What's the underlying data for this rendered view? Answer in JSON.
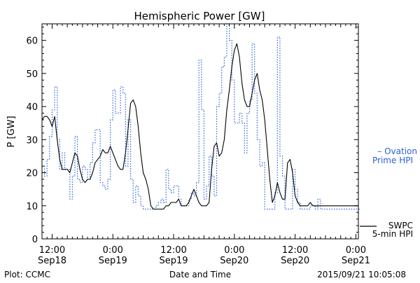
{
  "chart_data": {
    "type": "line",
    "title": "Hemispheric Power [GW]",
    "ylabel": "P [GW]",
    "xlabel": "Date and Time",
    "xlim_hours": [
      -2.0,
      60.5
    ],
    "ylim": [
      0,
      65
    ],
    "y_ticks": [
      0,
      10,
      20,
      30,
      40,
      50,
      60
    ],
    "x_ticks": [
      {
        "hour": 0,
        "time": "12:00",
        "date": "Sep18"
      },
      {
        "hour": 12,
        "time": "0:00",
        "date": "Sep19"
      },
      {
        "hour": 24,
        "time": "12:00",
        "date": "Sep19"
      },
      {
        "hour": 36,
        "time": "0:00",
        "date": "Sep20"
      },
      {
        "hour": 48,
        "time": "12:00",
        "date": "Sep20"
      },
      {
        "hour": 60,
        "time": "0:00",
        "date": "Sep21"
      }
    ],
    "x_unit": "hours since 2015-09-18 12:00 UT",
    "series": [
      {
        "name": "Ovation Prime HPI",
        "legend": [
          "– Ovation",
          "Prime HPI"
        ],
        "color": "#2c62d8",
        "style": "dotted-step",
        "x": [
          -2.0,
          -1.5,
          -1.0,
          -0.5,
          0.0,
          0.5,
          1.0,
          1.5,
          2.0,
          2.5,
          3.0,
          3.5,
          4.0,
          4.5,
          5.0,
          5.5,
          6.0,
          6.5,
          7.0,
          7.5,
          8.0,
          8.5,
          9.0,
          9.5,
          10.0,
          10.5,
          11.0,
          11.5,
          12.0,
          12.5,
          13.0,
          13.5,
          14.0,
          14.5,
          15.0,
          15.5,
          16.0,
          16.5,
          17.0,
          17.5,
          18.0,
          18.5,
          19.0,
          19.5,
          20.0,
          20.5,
          21.0,
          21.5,
          22.0,
          22.5,
          23.0,
          23.5,
          24.0,
          24.5,
          25.0,
          25.5,
          26.0,
          26.5,
          27.0,
          27.5,
          28.0,
          28.5,
          29.0,
          29.5,
          30.0,
          30.5,
          31.0,
          31.5,
          32.0,
          32.5,
          33.0,
          33.5,
          34.0,
          34.5,
          35.0,
          35.5,
          36.0,
          36.5,
          37.0,
          37.5,
          38.0,
          38.5,
          39.0,
          39.5,
          40.0,
          40.5,
          41.0,
          41.5,
          42.0,
          42.5,
          43.0,
          43.5,
          44.0,
          44.5,
          45.0,
          45.5,
          46.0,
          46.5,
          47.0,
          47.5,
          48.0,
          48.5,
          49.0,
          49.5,
          50.0,
          50.5,
          51.0,
          51.5,
          52.0,
          52.5,
          53.0,
          53.5,
          54.0,
          54.5,
          55.0,
          55.5,
          56.0,
          56.5,
          57.0,
          57.5,
          58.0,
          58.5,
          59.0,
          59.5,
          60.0,
          60.5
        ],
        "values": [
          22,
          19,
          24,
          31,
          39,
          46,
          30,
          21,
          26,
          21,
          21,
          12,
          19,
          31,
          18,
          17,
          22,
          21,
          18,
          23,
          29,
          33,
          33,
          17,
          16,
          15,
          18,
          36,
          45,
          38,
          38,
          46,
          44,
          22,
          36,
          18,
          11,
          16,
          13,
          10,
          9,
          9,
          9,
          9,
          9,
          10,
          11,
          12,
          11,
          21,
          15,
          14,
          16,
          16,
          12,
          10,
          10,
          10,
          12,
          14,
          13,
          17,
          54,
          39,
          12,
          16,
          25,
          19,
          13,
          40,
          44,
          52,
          55,
          65,
          60,
          48,
          35,
          35,
          38,
          35,
          26,
          38,
          42,
          59,
          44,
          30,
          22,
          23,
          9,
          9,
          9,
          9,
          14,
          61,
          25,
          19,
          9,
          9,
          9,
          21,
          15,
          11,
          9,
          9,
          9,
          9,
          10,
          10,
          9,
          12,
          9,
          9,
          9,
          9,
          9,
          9,
          9,
          9,
          9,
          9,
          9,
          9,
          9,
          9,
          9,
          9
        ]
      },
      {
        "name": "SWPC 5-min HPI",
        "legend": [
          "SWPC",
          "5-min HPI"
        ],
        "color": "#000000",
        "style": "solid",
        "x": [
          -2.0,
          -1.5,
          -1.0,
          -0.5,
          0.0,
          0.5,
          1.0,
          1.5,
          2.0,
          2.5,
          3.0,
          3.5,
          4.0,
          4.5,
          5.0,
          5.5,
          6.0,
          6.5,
          7.0,
          7.5,
          8.0,
          8.5,
          9.0,
          9.5,
          10.0,
          10.5,
          11.0,
          11.5,
          12.0,
          12.5,
          13.0,
          13.5,
          14.0,
          14.5,
          15.0,
          15.5,
          16.0,
          16.5,
          17.0,
          17.5,
          18.0,
          18.5,
          19.0,
          19.5,
          20.0,
          20.5,
          21.0,
          21.5,
          22.0,
          22.5,
          23.0,
          23.5,
          24.0,
          24.5,
          25.0,
          25.5,
          26.0,
          26.5,
          27.0,
          27.5,
          28.0,
          28.5,
          29.0,
          29.5,
          30.0,
          30.5,
          31.0,
          31.5,
          32.0,
          32.5,
          33.0,
          33.5,
          34.0,
          34.5,
          35.0,
          35.5,
          36.0,
          36.5,
          37.0,
          37.5,
          38.0,
          38.5,
          39.0,
          39.5,
          40.0,
          40.5,
          41.0,
          41.5,
          42.0,
          42.5,
          43.0,
          43.5,
          44.0,
          44.5,
          45.0,
          45.5,
          46.0,
          46.5,
          47.0,
          47.5,
          48.0,
          48.5,
          49.0,
          49.5,
          50.0,
          50.5,
          51.0,
          51.5,
          52.0,
          52.5,
          53.0,
          53.5,
          54.0,
          54.5,
          55.0,
          55.5,
          56.0,
          56.5,
          57.0,
          57.5,
          58.0,
          58.5,
          59.0,
          59.5,
          60.0,
          60.5
        ],
        "values": [
          36,
          37,
          37,
          36,
          34,
          37,
          30,
          24,
          21,
          21,
          21,
          20,
          23,
          26,
          25,
          21,
          18,
          17,
          18,
          18,
          20,
          23,
          24,
          25,
          27,
          26,
          26,
          28,
          26,
          24,
          22,
          21,
          21,
          26,
          33,
          41,
          42,
          40,
          34,
          26,
          20,
          18,
          15,
          10,
          9,
          9,
          9,
          9,
          9,
          10,
          10,
          11,
          11,
          11,
          12,
          10,
          10,
          10,
          11,
          13,
          15,
          13,
          11,
          10,
          10,
          10,
          11,
          21,
          28,
          29,
          25,
          26,
          30,
          39,
          45,
          52,
          57,
          59,
          55,
          47,
          42,
          40,
          40,
          44,
          48,
          50,
          45,
          42,
          36,
          27,
          18,
          11,
          13,
          17,
          14,
          12,
          12,
          23,
          24,
          20,
          13,
          11,
          10,
          10,
          10,
          10,
          11,
          10,
          10,
          10,
          10,
          10,
          10,
          10,
          10,
          10,
          10,
          10,
          10,
          10,
          10,
          10,
          10,
          10,
          10,
          10
        ]
      }
    ],
    "footer": {
      "left": "Plot: CCMC",
      "right": "2015/09/21 10:05:08"
    }
  }
}
